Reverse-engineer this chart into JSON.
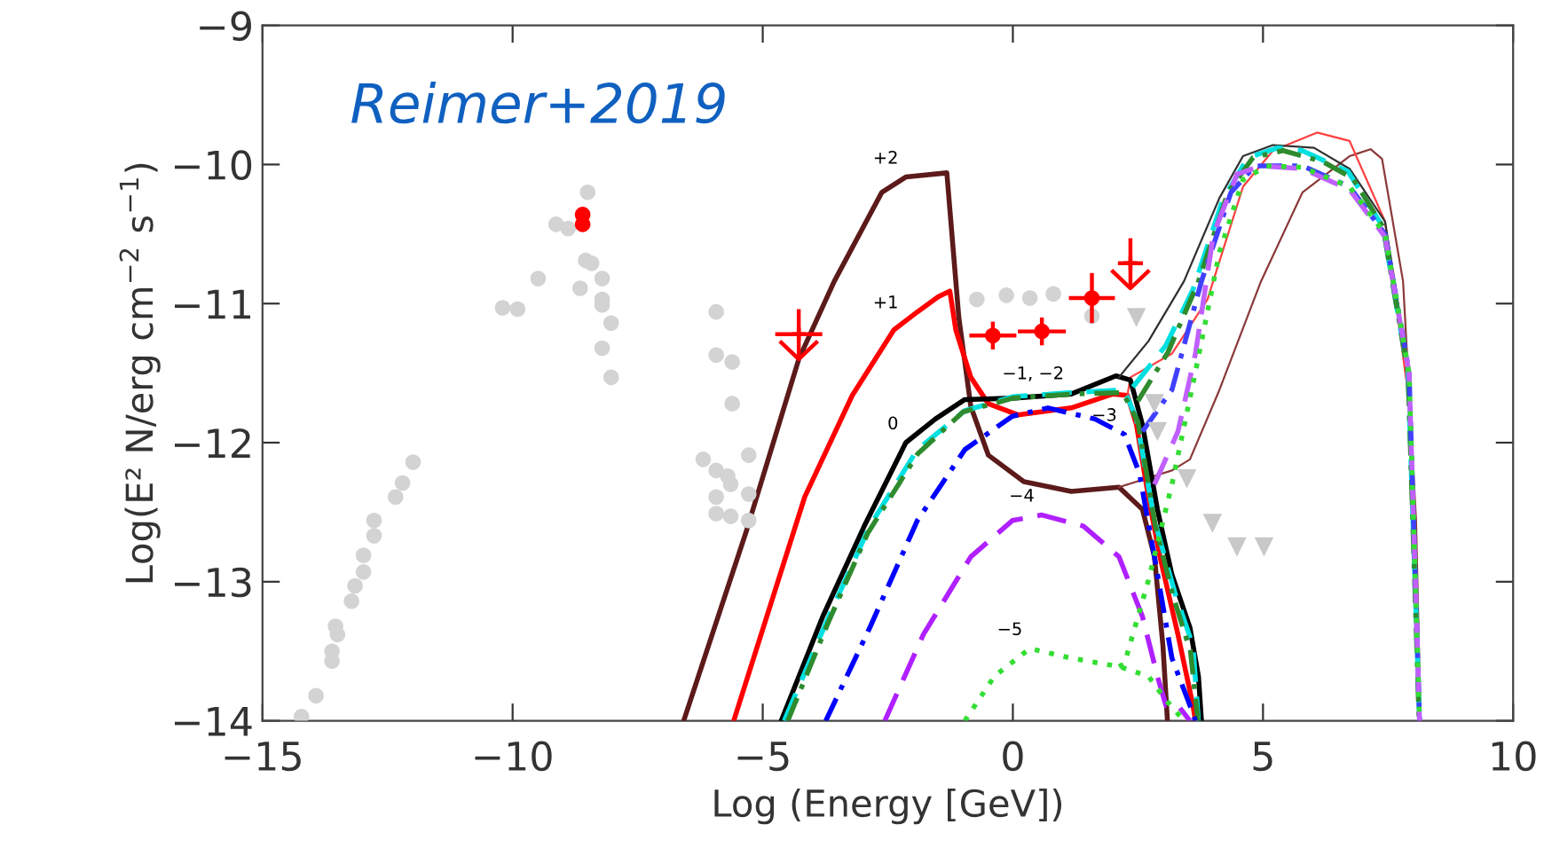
{
  "chart_data": {
    "type": "line",
    "xlabel": "Log (Energy [GeV])",
    "ylabel": "Log(E² N/erg cm$^{−2}$ s$^{−1}$)",
    "xlim": [
      -15,
      10
    ],
    "ylim": [
      -14,
      -9
    ],
    "xticks": [
      {
        "value": -15,
        "label": "−15"
      },
      {
        "value": -10,
        "label": "−10"
      },
      {
        "value": -5,
        "label": "−5"
      },
      0,
      5,
      10
    ],
    "yticks": [
      {
        "value": -14,
        "label": "−14"
      },
      {
        "value": -13,
        "label": "−13"
      },
      {
        "value": -12,
        "label": "−12"
      },
      {
        "value": -11,
        "label": "−11"
      },
      {
        "value": -10,
        "label": "−10"
      },
      {
        "value": -9,
        "label": "−9"
      }
    ],
    "grid": false,
    "legend": false,
    "annotations": [
      "Reimer+2019",
      {
        "text": "+2",
        "x": -2.14,
        "y": -10.09
      },
      {
        "text": "+1",
        "x": -2.14,
        "y": -11.13
      },
      {
        "text": "0",
        "x": -2.14,
        "y": -12.0
      },
      {
        "text": "−1, −2",
        "x": 1.17,
        "y": -11.64
      },
      {
        "text": "−3",
        "x": 2.23,
        "y": -11.94
      },
      {
        "text": "−4",
        "x": 0.58,
        "y": -12.52
      },
      {
        "text": "−5",
        "x": 0.34,
        "y": -13.48
      }
    ],
    "series": [
      {
        "type": "scatter",
        "marker": "circle",
        "color": "#d3d3d3",
        "x": [
          -14.22,
          -13.93,
          -13.61,
          -13.61,
          -13.5,
          -13.54,
          -13.22,
          -13.15,
          -12.98,
          -12.98,
          -12.77,
          -12.77,
          -12.34,
          -12.2,
          -11.99,
          -10.2,
          -9.9,
          -9.49,
          -9.13,
          -8.89,
          -8.5,
          -8.54,
          -8.42,
          -8.65,
          -8.21,
          -8.21,
          -8.21,
          -8.03,
          -8.21,
          -8.03,
          -5.93,
          -5.93,
          -5.61,
          -5.61,
          -6.19,
          -5.28,
          -5.93,
          -5.7,
          -5.64,
          -5.93,
          -5.28,
          -5.93,
          -5.64,
          -5.28,
          -0.72,
          -0.13,
          0.34,
          0.81,
          1.58
        ],
        "values": [
          -13.97,
          -13.82,
          -13.57,
          -13.5,
          -13.38,
          -13.32,
          -13.14,
          -13.03,
          -12.93,
          -12.81,
          -12.67,
          -12.56,
          -12.39,
          -12.29,
          -12.14,
          -11.03,
          -11.04,
          -10.82,
          -10.43,
          -10.46,
          -10.2,
          -10.69,
          -10.71,
          -10.89,
          -10.82,
          -10.97,
          -11.01,
          -11.14,
          -11.32,
          -11.53,
          -11.06,
          -11.37,
          -11.42,
          -11.72,
          -12.12,
          -12.09,
          -12.2,
          -12.24,
          -12.3,
          -12.39,
          -12.37,
          -12.51,
          -12.53,
          -12.56,
          -10.97,
          -10.94,
          -10.96,
          -10.93,
          -11.09
        ]
      },
      {
        "type": "scatter",
        "marker": "triangle",
        "color": "#c8c8c8",
        "x": [
          2.47,
          2.83,
          2.89,
          3.48,
          3.99,
          4.48,
          5.02
        ],
        "values": [
          -11.1,
          -11.72,
          -11.92,
          -12.26,
          -12.58,
          -12.75,
          -12.75
        ]
      },
      {
        "color": "#5c1a1a",
        "line_style": "solid",
        "x": [
          -6.58,
          -5.34,
          -4.28,
          -3.57,
          -2.62,
          -2.14,
          -1.32,
          -1.08,
          -0.84,
          -0.49,
          0.22,
          1.17,
          2.12,
          2.59,
          2.83,
          3.0,
          3.09
        ],
        "values": [
          -14,
          -12.65,
          -11.4,
          -10.84,
          -10.2,
          -10.09,
          -10.06,
          -11.1,
          -11.74,
          -12.09,
          -12.28,
          -12.35,
          -12.32,
          -12.48,
          -12.82,
          -13.46,
          -14
        ]
      },
      {
        "color": "#8b3a3a",
        "line_style": "solid",
        "x": [
          2.12,
          3.18,
          3.54,
          4.13,
          4.96,
          5.79,
          6.73,
          7.15,
          7.38,
          7.8,
          8.06,
          8.15
        ],
        "values": [
          -12.32,
          -12.2,
          -12.12,
          -11.62,
          -10.84,
          -10.2,
          -9.94,
          -9.89,
          -9.96,
          -10.84,
          -12.56,
          -14
        ]
      },
      {
        "color": "#ff0000",
        "line_style": "solid",
        "x": [
          -5.58,
          -4.16,
          -3.21,
          -2.38,
          -1.91,
          -1.49,
          -1.26,
          -1.14,
          -0.84,
          -0.49,
          0.1,
          1.17,
          2.0,
          2.29,
          2.47,
          2.71,
          2.94,
          3.3,
          3.6,
          3.65
        ],
        "values": [
          -14,
          -12.39,
          -11.66,
          -11.19,
          -11.06,
          -10.95,
          -10.91,
          -11.19,
          -11.53,
          -11.72,
          -11.8,
          -11.75,
          -11.65,
          -11.66,
          -11.87,
          -12.39,
          -12.82,
          -13.38,
          -13.89,
          -14
        ]
      },
      {
        "color": "#ff4040",
        "line_style": "solid",
        "x": [
          2.29,
          2.35,
          3.18,
          3.89,
          4.6,
          5.2,
          6.08,
          6.73,
          7.44,
          7.92,
          8.15
        ],
        "values": [
          -11.66,
          -11.53,
          -11.36,
          -10.97,
          -10.16,
          -9.9,
          -9.77,
          -9.83,
          -10.41,
          -11.7,
          -14
        ]
      },
      {
        "color": "#000000",
        "line_style": "solid",
        "x": [
          -4.63,
          -3.8,
          -2.97,
          -2.14,
          -1.55,
          -0.96,
          -0.01,
          1.17,
          2.06,
          2.35,
          2.59,
          2.89,
          3.18,
          3.54,
          3.71,
          3.77
        ],
        "values": [
          -14,
          -13.25,
          -12.6,
          -12.0,
          -11.83,
          -11.69,
          -11.68,
          -11.65,
          -11.52,
          -11.55,
          -11.87,
          -12.48,
          -12.95,
          -13.33,
          -13.68,
          -14
        ]
      },
      {
        "color": "#303030",
        "line_style": "solid",
        "x": [
          2.12,
          2.71,
          3.42,
          4.13,
          4.6,
          5.2,
          6.02,
          6.73,
          7.44,
          7.92,
          8.13
        ],
        "values": [
          -11.53,
          -11.27,
          -10.84,
          -10.24,
          -9.94,
          -9.86,
          -9.88,
          -10.03,
          -10.41,
          -11.49,
          -14
        ]
      },
      {
        "color": "#00e0e0",
        "line_style": "dashed",
        "x": [
          -4.57,
          -3.68,
          -2.86,
          -1.91,
          -0.96,
          -0.01,
          1.17,
          2.23,
          2.47,
          2.83,
          3.24,
          3.6,
          3.71
        ],
        "values": [
          -14,
          -13.25,
          -12.6,
          -12.05,
          -11.77,
          -11.67,
          -11.64,
          -11.62,
          -11.83,
          -12.56,
          -13.08,
          -13.46,
          -14
        ]
      },
      {
        "color": "#00e0e0",
        "line_style": "dashed",
        "x": [
          2.4,
          3.06,
          3.6,
          4.2,
          4.7,
          5.3,
          5.78,
          6.7,
          7.4,
          7.9,
          8.13
        ],
        "values": [
          -11.6,
          -11.3,
          -10.9,
          -10.25,
          -9.95,
          -9.88,
          -9.9,
          -10.05,
          -10.45,
          -11.5,
          -14
        ]
      },
      {
        "color": "#2e8b2e",
        "line_style": "dashdot",
        "x": [
          -4.5,
          -3.7,
          -2.9,
          -1.9,
          -1.0,
          0.0,
          1.2,
          2.2,
          2.5,
          2.85,
          3.2,
          3.55,
          3.7
        ],
        "values": [
          -14,
          -13.3,
          -12.65,
          -12.08,
          -11.78,
          -11.68,
          -11.65,
          -11.64,
          -11.85,
          -12.6,
          -13.1,
          -13.5,
          -14
        ]
      },
      {
        "color": "#2e8b2e",
        "line_style": "dashdot",
        "x": [
          2.5,
          3.1,
          3.7,
          4.3,
          4.8,
          5.4,
          6.2,
          6.8,
          7.4,
          7.9,
          8.12
        ],
        "values": [
          -11.7,
          -11.35,
          -10.85,
          -10.2,
          -9.95,
          -9.9,
          -9.98,
          -10.1,
          -10.45,
          -11.5,
          -14
        ]
      },
      {
        "color": "#0000ff",
        "line_style": "dashdot",
        "x": [
          -3.74,
          -2.86,
          -1.91,
          -0.96,
          -0.01,
          0.7,
          1.64,
          2.23,
          2.53,
          2.83,
          3.18,
          3.54,
          3.65
        ],
        "values": [
          -14,
          -13.33,
          -12.56,
          -12.05,
          -11.81,
          -11.75,
          -11.83,
          -11.94,
          -12.22,
          -12.82,
          -13.55,
          -13.89,
          -14
        ]
      },
      {
        "color": "#4040ff",
        "line_style": "dashdot",
        "x": [
          2.59,
          3.18,
          3.77,
          4.36,
          4.84,
          5.79,
          6.73,
          7.44,
          7.92,
          8.13
        ],
        "values": [
          -11.92,
          -11.62,
          -10.84,
          -10.2,
          -10.01,
          -10.01,
          -10.16,
          -10.5,
          -11.49,
          -14
        ]
      },
      {
        "color": "#b020ff",
        "line_style": "dashed",
        "x": [
          -2.56,
          -1.79,
          -0.84,
          -0.01,
          0.58,
          1.41,
          2.12,
          2.59,
          2.89,
          3.06,
          3.3,
          3.54
        ],
        "values": [
          -14,
          -13.38,
          -12.82,
          -12.56,
          -12.52,
          -12.6,
          -12.82,
          -13.25,
          -13.68,
          -13.89,
          -13.89,
          -14
        ]
      },
      {
        "color": "#c060ff",
        "line_style": "dashed",
        "x": [
          2.83,
          3.3,
          3.65,
          4.01,
          4.48,
          4.96,
          5.79,
          6.73,
          7.44,
          7.92,
          8.13
        ],
        "values": [
          -12.3,
          -11.92,
          -11.36,
          -10.5,
          -10.07,
          -10.01,
          -10.03,
          -10.18,
          -10.52,
          -11.5,
          -14
        ]
      },
      {
        "color": "#33dd33",
        "line_style": "dotted",
        "x": [
          -0.96,
          -0.37,
          0.34,
          1.17,
          2.12,
          2.71,
          3.06,
          3.42
        ],
        "values": [
          -14,
          -13.68,
          -13.48,
          -13.55,
          -13.61,
          -13.68,
          -13.85,
          -14
        ]
      },
      {
        "color": "#33dd33",
        "line_style": "dotted",
        "x": [
          2.12,
          2.23,
          2.71,
          3.18,
          3.65,
          4.13,
          4.6,
          5.07,
          5.79,
          6.73,
          7.44,
          7.92,
          8.13
        ],
        "values": [
          -13.61,
          -13.59,
          -12.99,
          -12.3,
          -11.49,
          -10.63,
          -10.11,
          -10.01,
          -10.02,
          -10.16,
          -10.5,
          -11.5,
          -14
        ]
      },
      {
        "type": "scatter",
        "marker": "circle",
        "color": "#ff0000",
        "x": [
          -8.6,
          -8.6,
          -0.4,
          0.58,
          1.58
        ],
        "values": [
          -10.36,
          -10.43,
          -11.23,
          -11.2,
          -10.96
        ],
        "xerrors": [
          null,
          null,
          0.47,
          0.48,
          0.46
        ],
        "errors": [
          null,
          null,
          0.1,
          0.1,
          0.18
        ]
      },
      {
        "type": "scatter",
        "marker": "cross",
        "color": "#ff0000",
        "x": [
          -4.28,
          2.35
        ],
        "values": [
          -11.22,
          -10.71
        ],
        "xerrors": [
          0.47,
          0.25
        ],
        "errors": [
          0.18,
          0.18
        ]
      }
    ]
  }
}
